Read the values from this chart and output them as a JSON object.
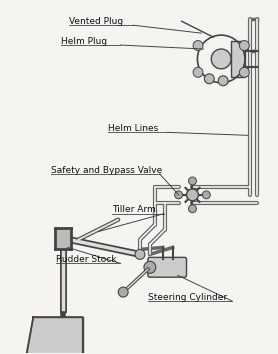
{
  "bg_color": "#f5f4f1",
  "line_color": "#444444",
  "tube_color": "#666666",
  "labels": {
    "vented_plug": "Vented Plug",
    "helm_plug": "Helm Plug",
    "helm_lines": "Helm Lines",
    "safety_bypass": "Safety and Bypass Valve",
    "tiller_arm": "Tiller Arm",
    "rudder_stock": "Rudder Stock",
    "steering_cylinder": "Steering Cylinder"
  },
  "font_size": 6.5,
  "fig_bg": "#f5f4f1",
  "fig_w": 2.78,
  "fig_h": 3.54,
  "dpi": 100
}
